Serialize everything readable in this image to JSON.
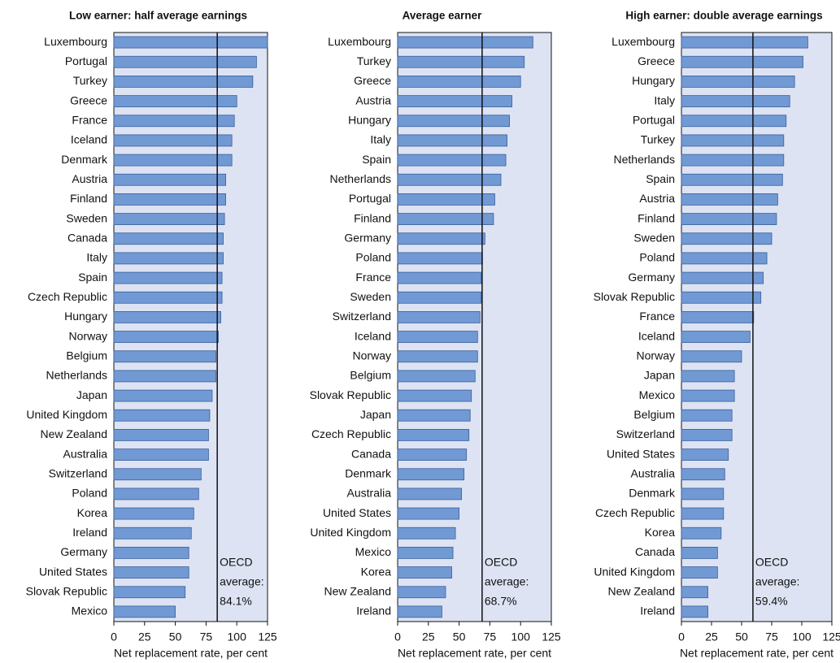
{
  "chart_data": [
    {
      "type": "bar",
      "orientation": "horizontal",
      "title": "Low earner: half average earnings",
      "categories": [
        "Luxembourg",
        "Portugal",
        "Turkey",
        "Greece",
        "France",
        "Iceland",
        "Denmark",
        "Austria",
        "Finland",
        "Sweden",
        "Canada",
        "Italy",
        "Spain",
        "Czech Republic",
        "Hungary",
        "Norway",
        "Belgium",
        "Netherlands",
        "Japan",
        "United Kingdom",
        "New Zealand",
        "Australia",
        "Switzerland",
        "Poland",
        "Korea",
        "Ireland",
        "Germany",
        "United States",
        "Slovak Republic",
        "Mexico"
      ],
      "values": [
        125,
        116,
        113,
        100,
        98,
        96,
        96,
        91,
        91,
        90,
        89,
        89,
        88,
        88,
        87,
        85,
        83,
        83,
        80,
        78,
        77,
        77,
        71,
        69,
        65,
        63,
        61,
        61,
        58,
        50
      ],
      "color": "#7199d4",
      "xlim": [
        0,
        125
      ],
      "xticks": [
        0,
        25,
        50,
        75,
        100,
        125
      ],
      "xlabel": "Net replacement rate, per cent",
      "average": 84.1,
      "annotation": [
        "OECD",
        "average:",
        "84.1%"
      ]
    },
    {
      "type": "bar",
      "orientation": "horizontal",
      "title": "Average earner",
      "categories": [
        "Luxembourg",
        "Turkey",
        "Greece",
        "Austria",
        "Hungary",
        "Italy",
        "Spain",
        "Netherlands",
        "Portugal",
        "Finland",
        "Germany",
        "Poland",
        "France",
        "Sweden",
        "Switzerland",
        "Iceland",
        "Norway",
        "Belgium",
        "Slovak Republic",
        "Japan",
        "Czech Republic",
        "Canada",
        "Denmark",
        "Australia",
        "United States",
        "United Kingdom",
        "Mexico",
        "Korea",
        "New Zealand",
        "Ireland"
      ],
      "values": [
        110,
        103,
        100,
        93,
        91,
        89,
        88,
        84,
        79,
        78,
        71,
        69,
        68,
        68,
        67,
        65,
        65,
        63,
        60,
        59,
        58,
        56,
        54,
        52,
        50,
        47,
        45,
        44,
        39,
        36
      ],
      "color": "#7199d4",
      "xlim": [
        0,
        125
      ],
      "xticks": [
        0,
        25,
        50,
        75,
        100,
        125
      ],
      "xlabel": "Net replacement rate, per cent",
      "average": 68.7,
      "annotation": [
        "OECD",
        "average:",
        "68.7%"
      ]
    },
    {
      "type": "bar",
      "orientation": "horizontal",
      "title": "High earner: double average earnings",
      "categories": [
        "Luxembourg",
        "Greece",
        "Hungary",
        "Italy",
        "Portugal",
        "Turkey",
        "Netherlands",
        "Spain",
        "Austria",
        "Finland",
        "Sweden",
        "Poland",
        "Germany",
        "Slovak Republic",
        "France",
        "Iceland",
        "Norway",
        "Japan",
        "Mexico",
        "Belgium",
        "Switzerland",
        "United States",
        "Australia",
        "Denmark",
        "Czech Republic",
        "Korea",
        "Canada",
        "United Kingdom",
        "New Zealand",
        "Ireland"
      ],
      "values": [
        105,
        101,
        94,
        90,
        87,
        85,
        85,
        84,
        80,
        79,
        75,
        71,
        68,
        66,
        60,
        57,
        50,
        44,
        44,
        42,
        42,
        39,
        36,
        35,
        35,
        33,
        30,
        30,
        22,
        22
      ],
      "color": "#7199d4",
      "xlim": [
        0,
        125
      ],
      "xticks": [
        0,
        25,
        50,
        75,
        100,
        125
      ],
      "xlabel": "Net replacement rate, per cent",
      "average": 59.4,
      "annotation": [
        "OECD",
        "average:",
        "59.4%"
      ]
    }
  ]
}
